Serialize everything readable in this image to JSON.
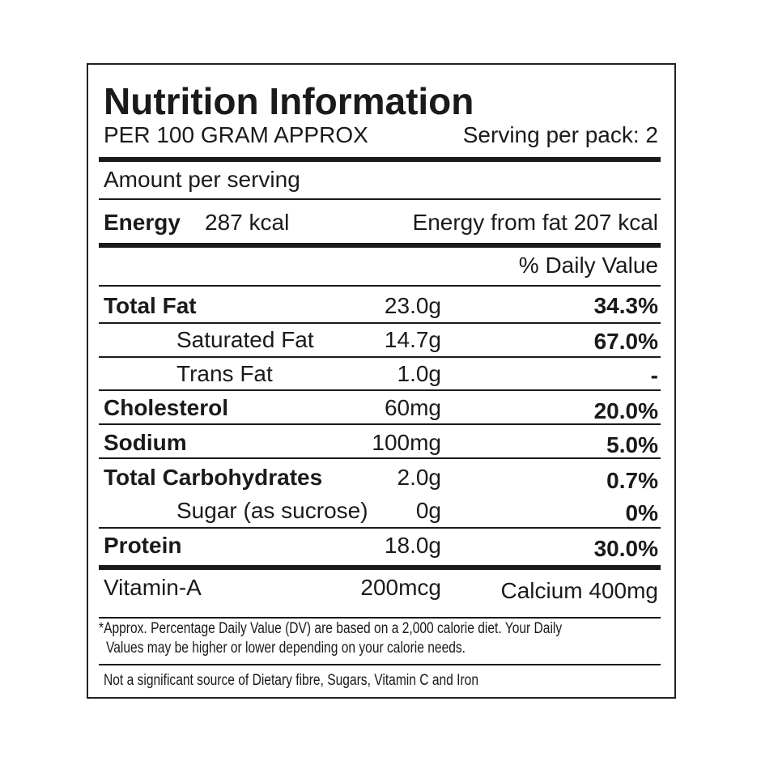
{
  "title": "Nutrition Information",
  "subtitle_left": "PER 100 GRAM APPROX",
  "subtitle_right": "Serving per pack: 2",
  "amount_per_serving": "Amount per serving",
  "energy": {
    "label": "Energy",
    "value": "287 kcal",
    "from_fat": "Energy from fat 207 kcal"
  },
  "daily_value_header": "% Daily Value",
  "nutrients": [
    {
      "name": "Total Fat",
      "amount": "23.0g",
      "dv": "34.3%"
    },
    {
      "name": "Saturated Fat",
      "amount": "14.7g",
      "dv": "67.0%"
    },
    {
      "name": "Trans Fat",
      "amount": "1.0g",
      "dv": "-"
    },
    {
      "name": "Cholesterol",
      "amount": "60mg",
      "dv": "20.0%"
    },
    {
      "name": "Sodium",
      "amount": "100mg",
      "dv": "5.0%"
    },
    {
      "name": "Total Carbohydrates",
      "amount": "2.0g",
      "dv": "0.7%"
    },
    {
      "name": "Sugar (as sucrose)",
      "amount": "0g",
      "dv": "0%"
    },
    {
      "name": "Protein",
      "amount": "18.0g",
      "dv": "30.0%"
    }
  ],
  "vitamin_a": {
    "label": "Vitamin-A",
    "value": "200mcg"
  },
  "calcium": "Calcium 400mg",
  "footnote_line1": "*Approx. Percentage Daily Value (DV) are based on a 2,000 calorie diet. Your Daily",
  "footnote_line2": "Values may be higher or lower depending on your calorie needs.",
  "not_significant": "Not a significant source of Dietary fibre, Sugars, Vitamin C and Iron"
}
